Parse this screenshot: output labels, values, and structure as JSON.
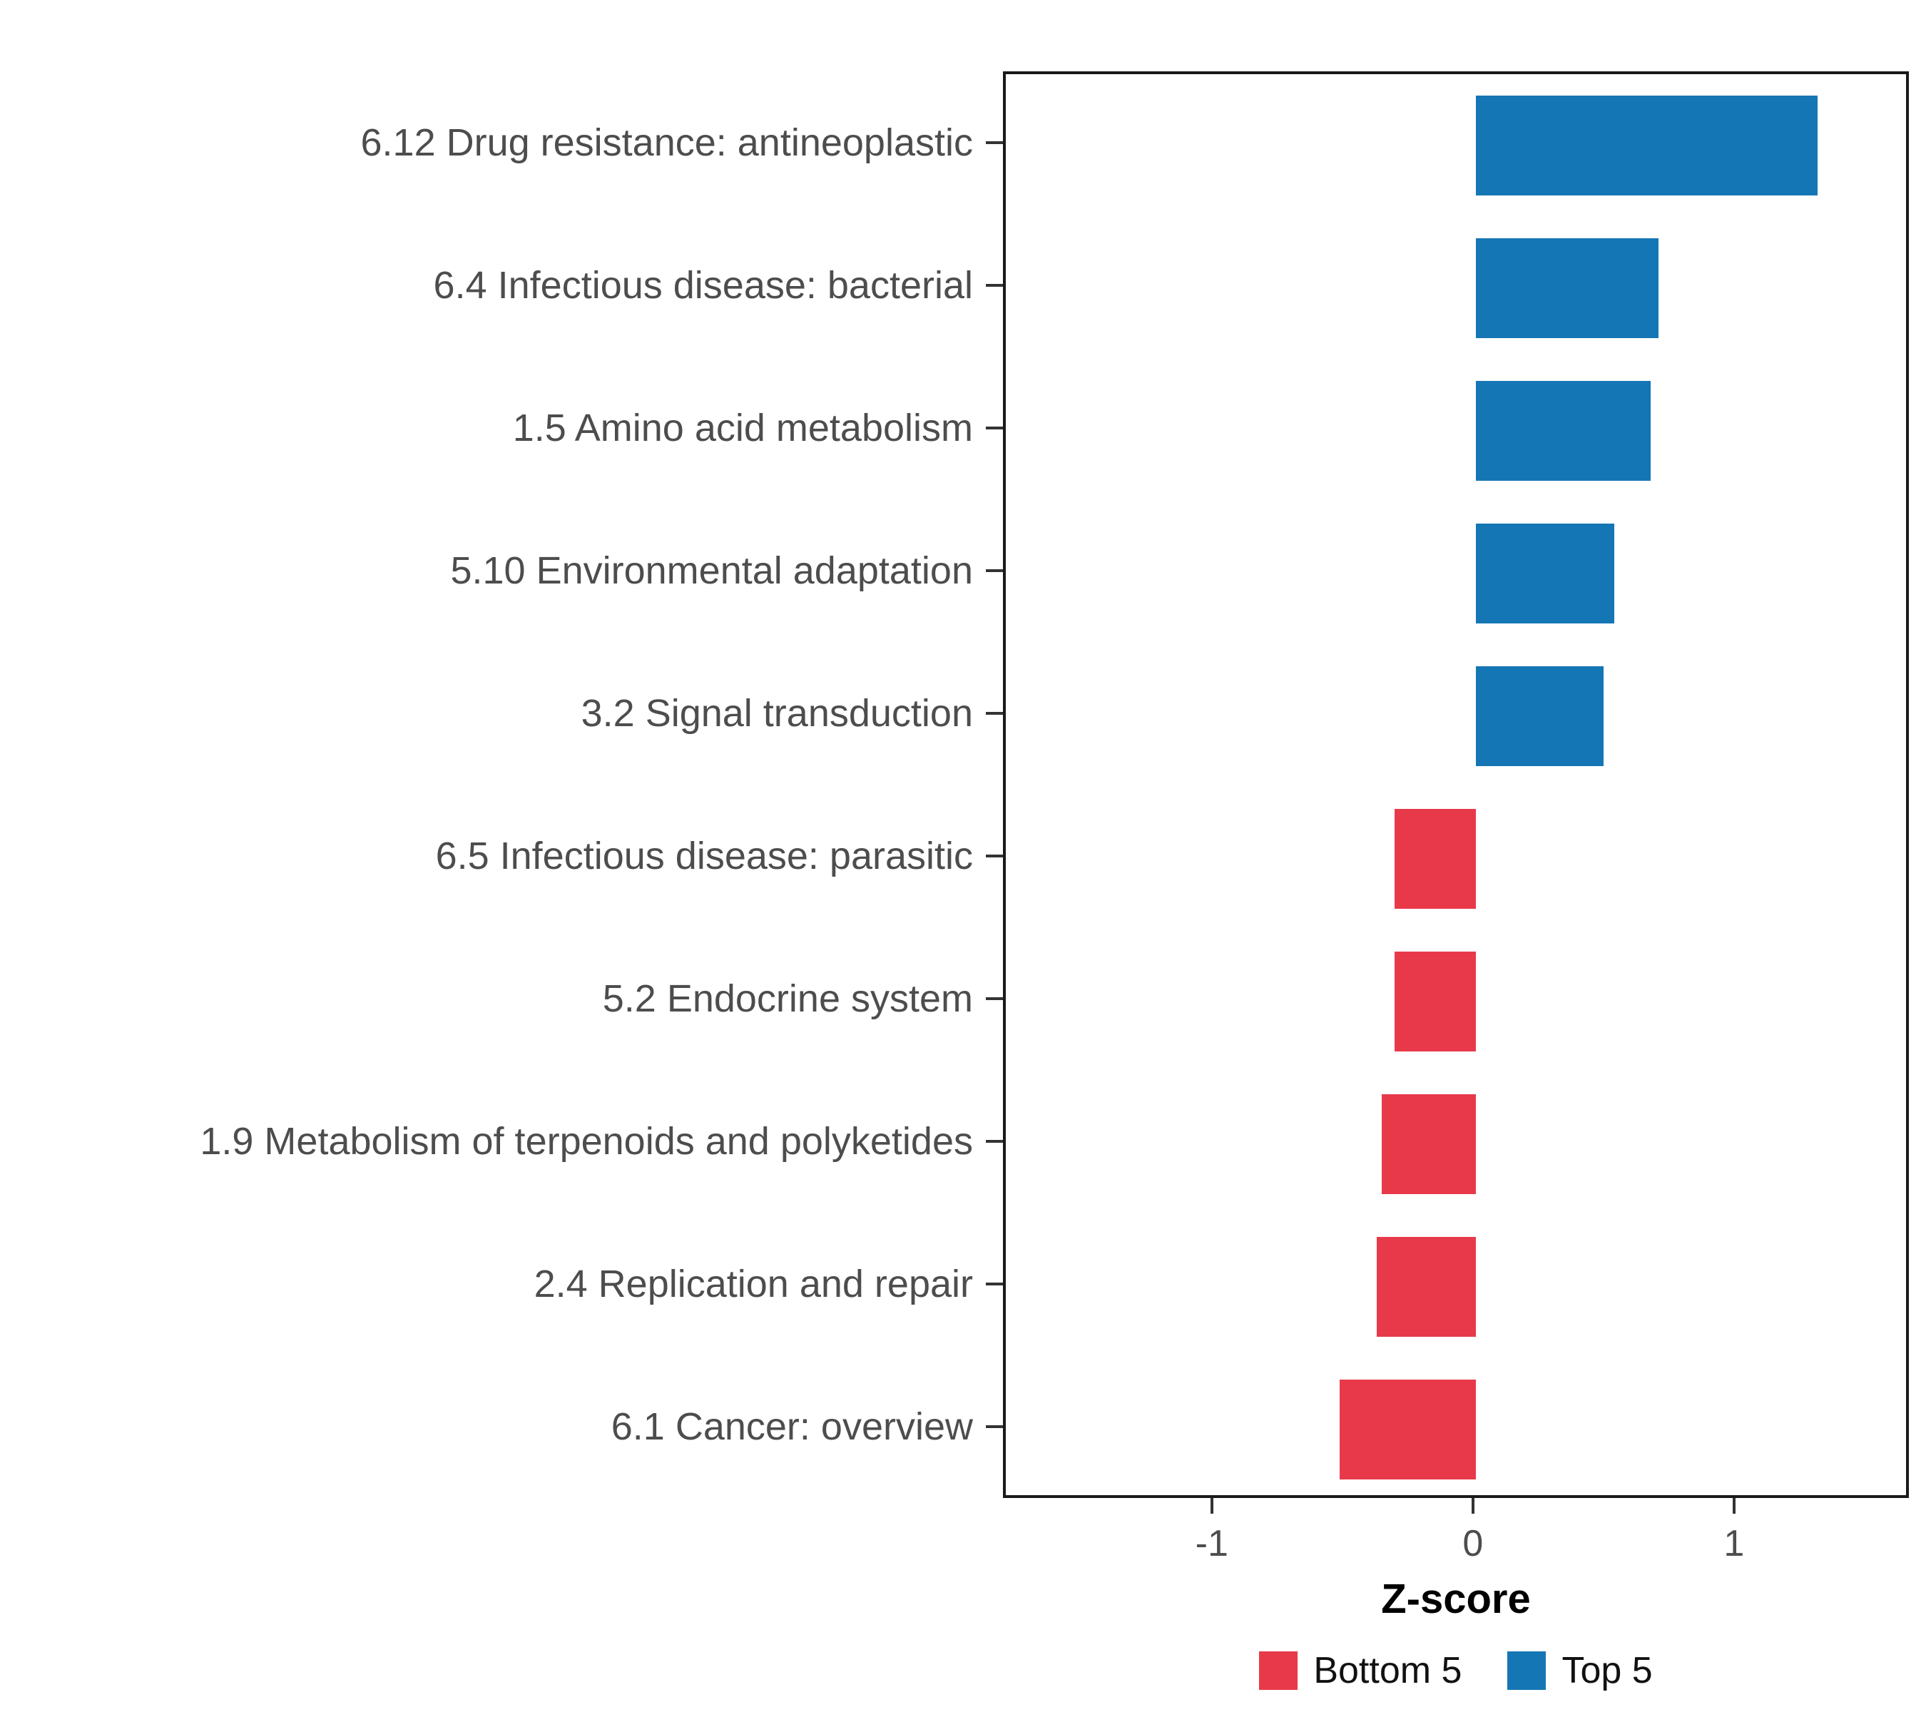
{
  "chart_data": {
    "type": "bar",
    "orientation": "horizontal",
    "title": "",
    "xlabel": "Z-score",
    "ylabel": "",
    "xlim": [
      -1.8,
      1.67
    ],
    "grid": false,
    "legend_position": "bottom",
    "x_ticks": [
      {
        "value": -1,
        "label": "-1"
      },
      {
        "value": 0,
        "label": "0"
      },
      {
        "value": 1,
        "label": "1"
      }
    ],
    "series_colors": {
      "Top 5": "#1576B5",
      "Bottom 5": "#E8394B"
    },
    "legend": [
      {
        "label": "Bottom 5",
        "color": "#E8394B"
      },
      {
        "label": "Top 5",
        "color": "#1576B5"
      }
    ],
    "bars": [
      {
        "category": "6.12 Drug resistance: antineoplastic",
        "value": 1.31,
        "group": "Top 5"
      },
      {
        "category": "6.4 Infectious disease: bacterial",
        "value": 0.7,
        "group": "Top 5"
      },
      {
        "category": "1.5 Amino acid metabolism",
        "value": 0.67,
        "group": "Top 5"
      },
      {
        "category": "5.10 Environmental adaptation",
        "value": 0.53,
        "group": "Top 5"
      },
      {
        "category": "3.2 Signal transduction",
        "value": 0.49,
        "group": "Top 5"
      },
      {
        "category": "6.5 Infectious disease: parasitic",
        "value": -0.31,
        "group": "Bottom 5"
      },
      {
        "category": "5.2 Endocrine system",
        "value": -0.31,
        "group": "Bottom 5"
      },
      {
        "category": "1.9 Metabolism of terpenoids and polyketides",
        "value": -0.36,
        "group": "Bottom 5"
      },
      {
        "category": "2.4 Replication and repair",
        "value": -0.38,
        "group": "Bottom 5"
      },
      {
        "category": "6.1 Cancer: overview",
        "value": -0.52,
        "group": "Bottom 5"
      }
    ]
  }
}
